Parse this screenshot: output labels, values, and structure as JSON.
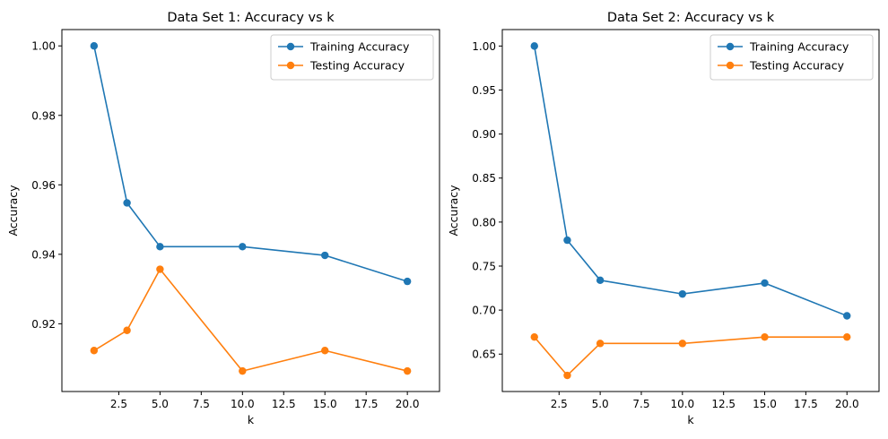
{
  "chart_data": [
    {
      "type": "line",
      "title": "Data Set 1: Accuracy vs k",
      "xlabel": "k",
      "ylabel": "Accuracy",
      "x": [
        1,
        3,
        5,
        10,
        15,
        20
      ],
      "xlim": [
        -0.95,
        21.95
      ],
      "ylim": [
        0.9005,
        1.0047
      ],
      "xticks": [
        2.5,
        5.0,
        7.5,
        10.0,
        12.5,
        15.0,
        17.5,
        20.0
      ],
      "xtick_labels": [
        "2.5",
        "5.0",
        "7.5",
        "10.0",
        "12.5",
        "15.0",
        "17.5",
        "20.0"
      ],
      "yticks": [
        0.92,
        0.94,
        0.96,
        0.98,
        1.0
      ],
      "ytick_labels": [
        "0.92",
        "0.94",
        "0.96",
        "0.98",
        "1.00"
      ],
      "grid": false,
      "legend_position": "top-right",
      "series": [
        {
          "name": "Training Accuracy",
          "color": "#1f77b4",
          "values": [
            1.0,
            0.9548,
            0.9422,
            0.9422,
            0.9397,
            0.9322
          ]
        },
        {
          "name": "Testing Accuracy",
          "color": "#ff7f0e",
          "values": [
            0.9123,
            0.9181,
            0.9357,
            0.9064,
            0.9123,
            0.9064
          ]
        }
      ]
    },
    {
      "type": "line",
      "title": "Data Set 2: Accuracy vs k",
      "xlabel": "k",
      "ylabel": "Accuracy",
      "x": [
        1,
        3,
        5,
        10,
        15,
        20
      ],
      "xlim": [
        -0.95,
        21.95
      ],
      "ylim": [
        0.6075,
        1.0187
      ],
      "xticks": [
        2.5,
        5.0,
        7.5,
        10.0,
        12.5,
        15.0,
        17.5,
        20.0
      ],
      "xtick_labels": [
        "2.5",
        "5.0",
        "7.5",
        "10.0",
        "12.5",
        "15.0",
        "17.5",
        "20.0"
      ],
      "yticks": [
        0.65,
        0.7,
        0.75,
        0.8,
        0.85,
        0.9,
        0.95,
        1.0
      ],
      "ytick_labels": [
        "0.65",
        "0.70",
        "0.75",
        "0.80",
        "0.85",
        "0.90",
        "0.95",
        "1.00"
      ],
      "grid": false,
      "legend_position": "top-right",
      "series": [
        {
          "name": "Training Accuracy",
          "color": "#1f77b4",
          "values": [
            1.0,
            0.7794,
            0.7339,
            0.7183,
            0.7307,
            0.6935
          ]
        },
        {
          "name": "Testing Accuracy",
          "color": "#ff7f0e",
          "values": [
            0.6694,
            0.6258,
            0.6621,
            0.6621,
            0.6694,
            0.6694
          ]
        }
      ]
    }
  ]
}
